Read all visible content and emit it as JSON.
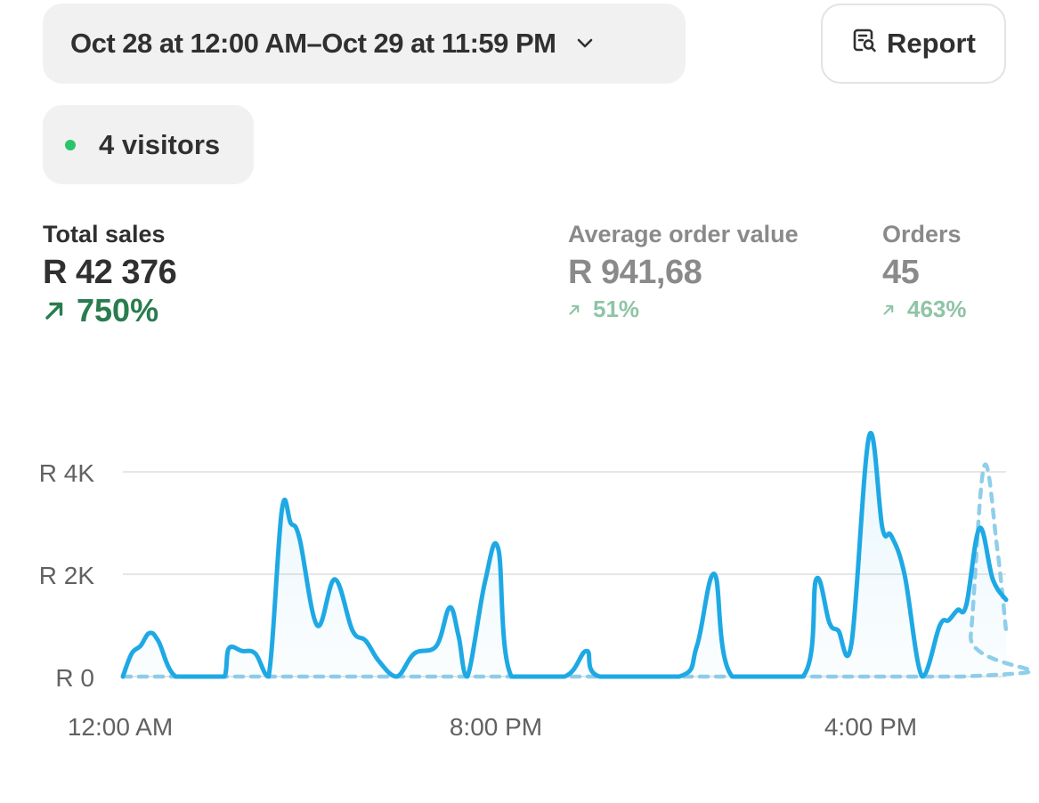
{
  "header": {
    "date_range": "Oct 28 at 12:00 AM–Oct 29 at 11:59 PM",
    "report_label": "Report"
  },
  "visitors": {
    "label": "4 visitors",
    "status_color": "#29c46b"
  },
  "metrics": {
    "total_sales": {
      "label": "Total sales",
      "value": "R 42 376",
      "change": "750%"
    },
    "average_order_value": {
      "label": "Average order value",
      "value": "R 941,68",
      "change": "51%"
    },
    "orders": {
      "label": "Orders",
      "value": "45",
      "change": "463%"
    }
  },
  "colors": {
    "primary_line": "#1fa9e4",
    "comparison_line": "#7cc5e6",
    "positive": "#297c4e",
    "positive_muted": "#8fc4a6"
  },
  "chart_data": {
    "type": "line",
    "y_ticks": [
      "R 0",
      "R 2K",
      "R 4K"
    ],
    "x_ticks": [
      "12:00 AM",
      "8:00 PM",
      "4:00 PM"
    ],
    "ylim": [
      0,
      4800
    ],
    "grid": true,
    "series": [
      {
        "style": "solid",
        "points": [
          [
            0,
            0
          ],
          [
            0.01,
            450
          ],
          [
            0.02,
            600
          ],
          [
            0.03,
            850
          ],
          [
            0.04,
            700
          ],
          [
            0.06,
            0
          ],
          [
            0.1,
            0
          ],
          [
            0.115,
            0
          ],
          [
            0.12,
            550
          ],
          [
            0.135,
            500
          ],
          [
            0.15,
            450
          ],
          [
            0.165,
            0
          ],
          [
            0.18,
            3250
          ],
          [
            0.19,
            3000
          ],
          [
            0.2,
            2700
          ],
          [
            0.22,
            1000
          ],
          [
            0.24,
            1900
          ],
          [
            0.26,
            900
          ],
          [
            0.275,
            700
          ],
          [
            0.29,
            300
          ],
          [
            0.31,
            0
          ],
          [
            0.33,
            450
          ],
          [
            0.355,
            600
          ],
          [
            0.37,
            1350
          ],
          [
            0.38,
            800
          ],
          [
            0.39,
            0
          ],
          [
            0.41,
            1850
          ],
          [
            0.425,
            2500
          ],
          [
            0.44,
            0
          ],
          [
            0.5,
            0
          ],
          [
            0.525,
            500
          ],
          [
            0.54,
            0
          ],
          [
            0.63,
            0
          ],
          [
            0.65,
            600
          ],
          [
            0.67,
            2000
          ],
          [
            0.69,
            0
          ],
          [
            0.77,
            0
          ],
          [
            0.785,
            1900
          ],
          [
            0.8,
            1050
          ],
          [
            0.81,
            900
          ],
          [
            0.825,
            650
          ],
          [
            0.845,
            4700
          ],
          [
            0.86,
            2900
          ],
          [
            0.87,
            2750
          ],
          [
            0.885,
            2000
          ],
          [
            0.905,
            0
          ],
          [
            0.925,
            1000
          ],
          [
            0.935,
            1100
          ],
          [
            0.945,
            1300
          ],
          [
            0.955,
            1400
          ],
          [
            0.97,
            2900
          ],
          [
            0.985,
            1900
          ],
          [
            1.0,
            1500
          ]
        ]
      },
      {
        "style": "dotted",
        "points": [
          [
            0,
            0
          ],
          [
            0.95,
            0
          ],
          [
            0.96,
            800
          ],
          [
            0.975,
            4100
          ],
          [
            0.99,
            2500
          ],
          [
            1.0,
            900
          ]
        ]
      }
    ]
  }
}
